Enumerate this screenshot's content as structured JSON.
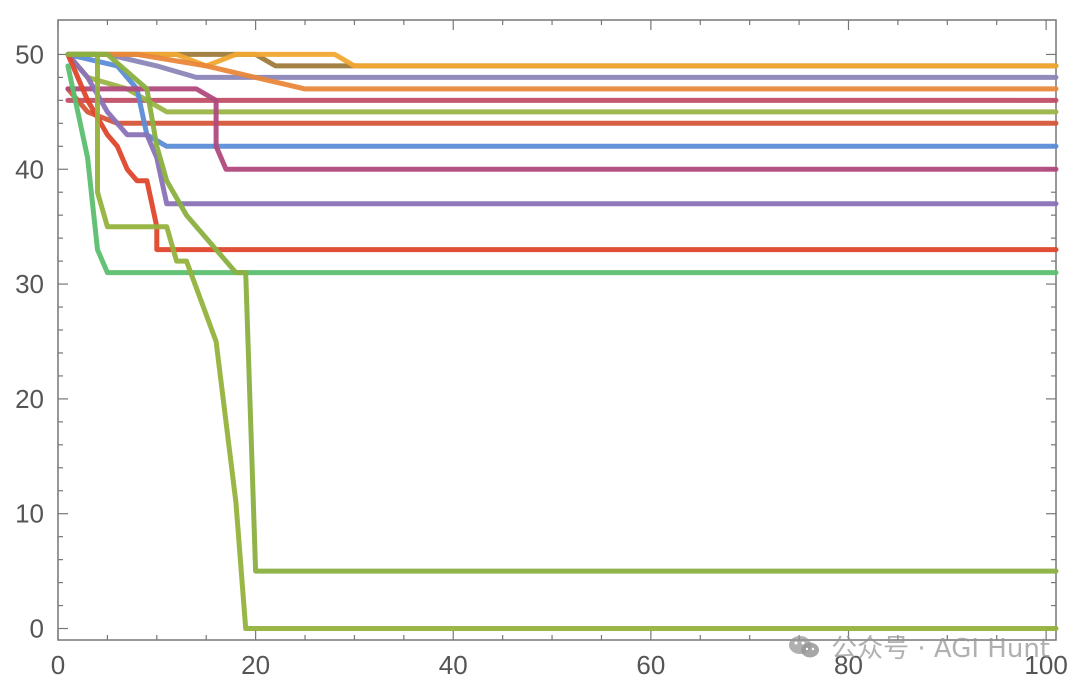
{
  "chart_data": {
    "type": "line",
    "title": "",
    "xlabel": "",
    "ylabel": "",
    "xlim": [
      0,
      101
    ],
    "ylim": [
      -1,
      53
    ],
    "xticks": [
      0,
      20,
      40,
      60,
      80,
      100
    ],
    "yticks": [
      0,
      10,
      20,
      30,
      40,
      50
    ],
    "grid": false,
    "series": [
      {
        "color": "#9f7a3a",
        "points": [
          [
            1,
            50
          ],
          [
            10,
            50
          ],
          [
            20,
            50
          ],
          [
            22,
            49
          ],
          [
            101,
            49
          ]
        ]
      },
      {
        "color": "#f0a830",
        "points": [
          [
            1,
            50
          ],
          [
            6,
            50
          ],
          [
            12,
            50
          ],
          [
            15,
            49
          ],
          [
            18,
            50
          ],
          [
            20,
            50
          ],
          [
            26,
            50
          ],
          [
            28,
            50
          ],
          [
            30,
            49
          ],
          [
            101,
            49
          ]
        ]
      },
      {
        "color": "#8b86b8",
        "points": [
          [
            1,
            50
          ],
          [
            5,
            50
          ],
          [
            10,
            49
          ],
          [
            14,
            48
          ],
          [
            101,
            48
          ]
        ]
      },
      {
        "color": "#e9873b",
        "points": [
          [
            1,
            50
          ],
          [
            8,
            50
          ],
          [
            15,
            49
          ],
          [
            20,
            48
          ],
          [
            25,
            47
          ],
          [
            101,
            47
          ]
        ]
      },
      {
        "color": "#c04f66",
        "points": [
          [
            1,
            46
          ],
          [
            17,
            46
          ],
          [
            101,
            46
          ]
        ]
      },
      {
        "color": "#9ab447",
        "points": [
          [
            1,
            50
          ],
          [
            3,
            48
          ],
          [
            7,
            47
          ],
          [
            11,
            45
          ],
          [
            101,
            45
          ]
        ]
      },
      {
        "color": "#d6563a",
        "points": [
          [
            1,
            47
          ],
          [
            3,
            45
          ],
          [
            6,
            44
          ],
          [
            10,
            44
          ],
          [
            101,
            44
          ]
        ]
      },
      {
        "color": "#5b8dd6",
        "points": [
          [
            1,
            50
          ],
          [
            6,
            49
          ],
          [
            8,
            47
          ],
          [
            9,
            43
          ],
          [
            11,
            42
          ],
          [
            101,
            42
          ]
        ]
      },
      {
        "color": "#b04a7c",
        "points": [
          [
            1,
            47
          ],
          [
            14,
            47
          ],
          [
            16,
            46
          ],
          [
            16,
            42
          ],
          [
            17,
            40
          ],
          [
            101,
            40
          ]
        ]
      },
      {
        "color": "#8a72b6",
        "points": [
          [
            1,
            50
          ],
          [
            3,
            48
          ],
          [
            5,
            45
          ],
          [
            7,
            43
          ],
          [
            9,
            43
          ],
          [
            10,
            41
          ],
          [
            11,
            37
          ],
          [
            101,
            37
          ]
        ]
      },
      {
        "color": "#e0462c",
        "points": [
          [
            1,
            50
          ],
          [
            3,
            46
          ],
          [
            5,
            43
          ],
          [
            6,
            42
          ],
          [
            7,
            40
          ],
          [
            8,
            39
          ],
          [
            9,
            39
          ],
          [
            10,
            35
          ],
          [
            10,
            33
          ],
          [
            101,
            33
          ]
        ]
      },
      {
        "color": "#5bbf6e",
        "points": [
          [
            1,
            49
          ],
          [
            2,
            45
          ],
          [
            3,
            41
          ],
          [
            4,
            33
          ],
          [
            5,
            31
          ],
          [
            101,
            31
          ]
        ]
      },
      {
        "color": "#93b23c",
        "points": [
          [
            1,
            50
          ],
          [
            4,
            50
          ],
          [
            4,
            38
          ],
          [
            5,
            35
          ],
          [
            11,
            35
          ],
          [
            12,
            32
          ],
          [
            13,
            32
          ],
          [
            16,
            25
          ],
          [
            18,
            11
          ],
          [
            19,
            0
          ],
          [
            101,
            0
          ]
        ]
      },
      {
        "color": "#8bb040",
        "points": [
          [
            1,
            50
          ],
          [
            5,
            50
          ],
          [
            9,
            47
          ],
          [
            10,
            42
          ],
          [
            11,
            39
          ],
          [
            13,
            36
          ],
          [
            15,
            34
          ],
          [
            17,
            32
          ],
          [
            18,
            31
          ],
          [
            19,
            31
          ],
          [
            20,
            5
          ],
          [
            101,
            5
          ]
        ]
      }
    ]
  },
  "watermark": {
    "icon": "wechat-icon",
    "text": "公众号 · AGI Hunt"
  }
}
